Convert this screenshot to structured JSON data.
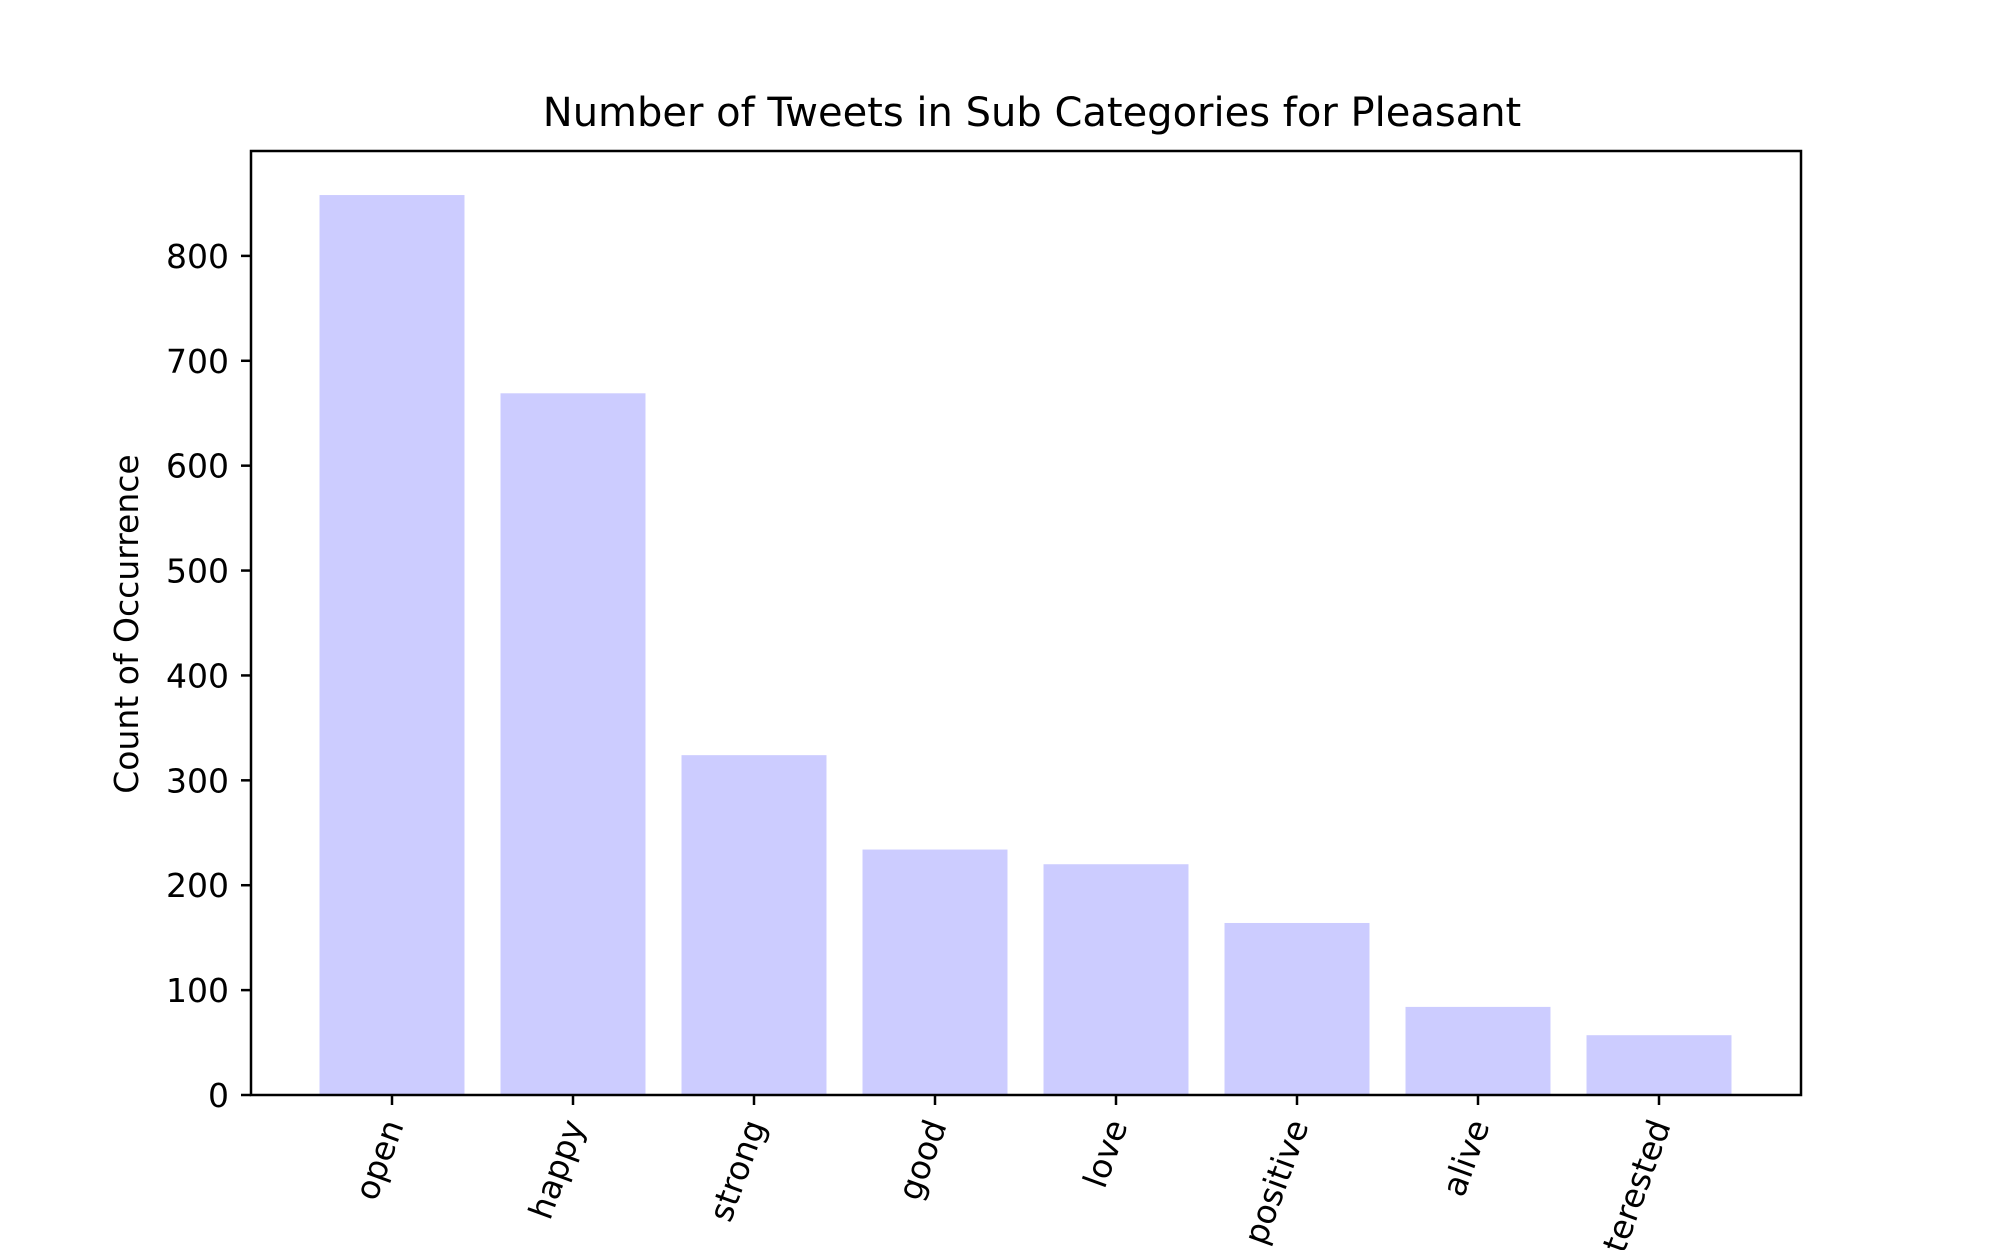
{
  "chart_data": {
    "type": "bar",
    "title": "Number of Tweets in Sub Categories for Pleasant",
    "xlabel": "",
    "ylabel": "Count of Occurrence",
    "categories": [
      "open",
      "happy",
      "strong",
      "good",
      "love",
      "positive",
      "alive",
      "interested"
    ],
    "values": [
      858,
      669,
      324,
      234,
      220,
      164,
      84,
      57
    ],
    "ylim": [
      0,
      900
    ],
    "yticks": [
      0,
      100,
      200,
      300,
      400,
      500,
      600,
      700,
      800
    ],
    "bar_color": "#ccccff",
    "grid": false,
    "legend": false
  }
}
